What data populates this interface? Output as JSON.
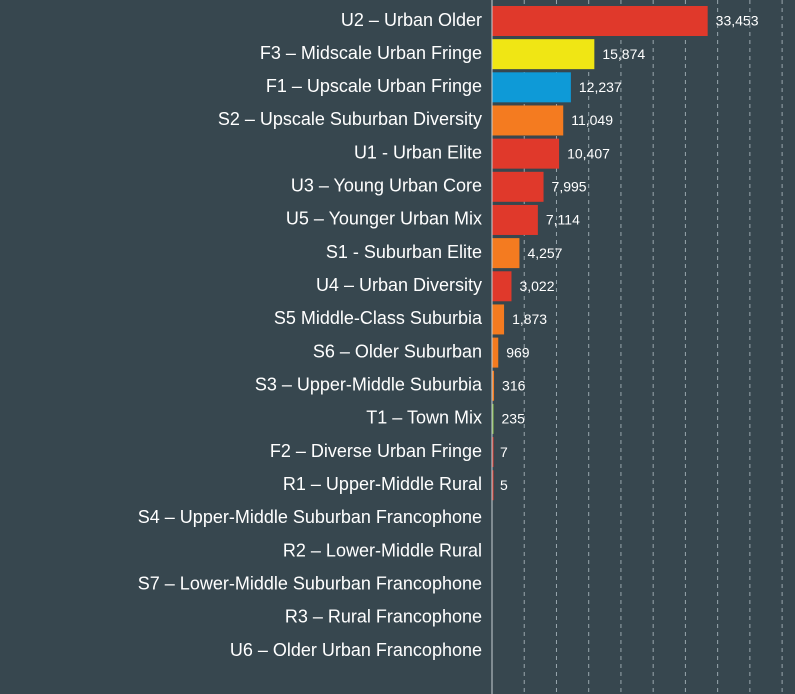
{
  "chart_data": {
    "type": "bar",
    "orientation": "horizontal",
    "categories": [
      "U2 – Urban Older",
      "F3 – Midscale Urban Fringe",
      "F1 – Upscale Urban Fringe",
      "S2 – Upscale Suburban Diversity",
      "U1 - Urban Elite",
      "U3 – Young Urban Core",
      "U5 – Younger Urban Mix",
      "S1 - Suburban Elite",
      "U4 – Urban Diversity",
      "S5 Middle-Class Suburbia",
      "S6 – Older Suburban",
      "S3 – Upper-Middle Suburbia",
      "T1 – Town Mix",
      "F2 – Diverse Urban Fringe",
      "R1 – Upper-Middle Rural",
      "S4 – Upper-Middle Suburban Francophone",
      "R2 – Lower-Middle Rural",
      "S7 – Lower-Middle Suburban Francophone",
      "R3 – Rural Francophone",
      "U6 – Older Urban Francophone"
    ],
    "values": [
      33453,
      15874,
      12237,
      11049,
      10407,
      7995,
      7114,
      4257,
      3022,
      1873,
      969,
      316,
      235,
      7,
      5,
      null,
      null,
      null,
      null,
      null
    ],
    "value_labels": [
      "33,453",
      "15,874",
      "12,237",
      "11,049",
      "10,407",
      "7,995",
      "7,114",
      "4,257",
      "3,022",
      "1,873",
      "969",
      "316",
      "235",
      "7",
      "5",
      null,
      null,
      null,
      null,
      null
    ],
    "colors": [
      "#e0392b",
      "#f0e614",
      "#0e9ad7",
      "#f47b20",
      "#e0392b",
      "#e0392b",
      "#e0392b",
      "#f47b20",
      "#e0392b",
      "#f47b20",
      "#f47b20",
      "#f47b20",
      "#8bc34a",
      "#e0392b",
      "#e0392b",
      "#e0392b",
      "#e0392b",
      "#f47b20",
      "#e0392b",
      "#e0392b"
    ],
    "xlim": [
      0,
      47000
    ],
    "xticks": [
      0,
      5000,
      10000,
      15000,
      20000,
      25000,
      30000,
      35000,
      40000,
      45000
    ],
    "grid": true
  }
}
